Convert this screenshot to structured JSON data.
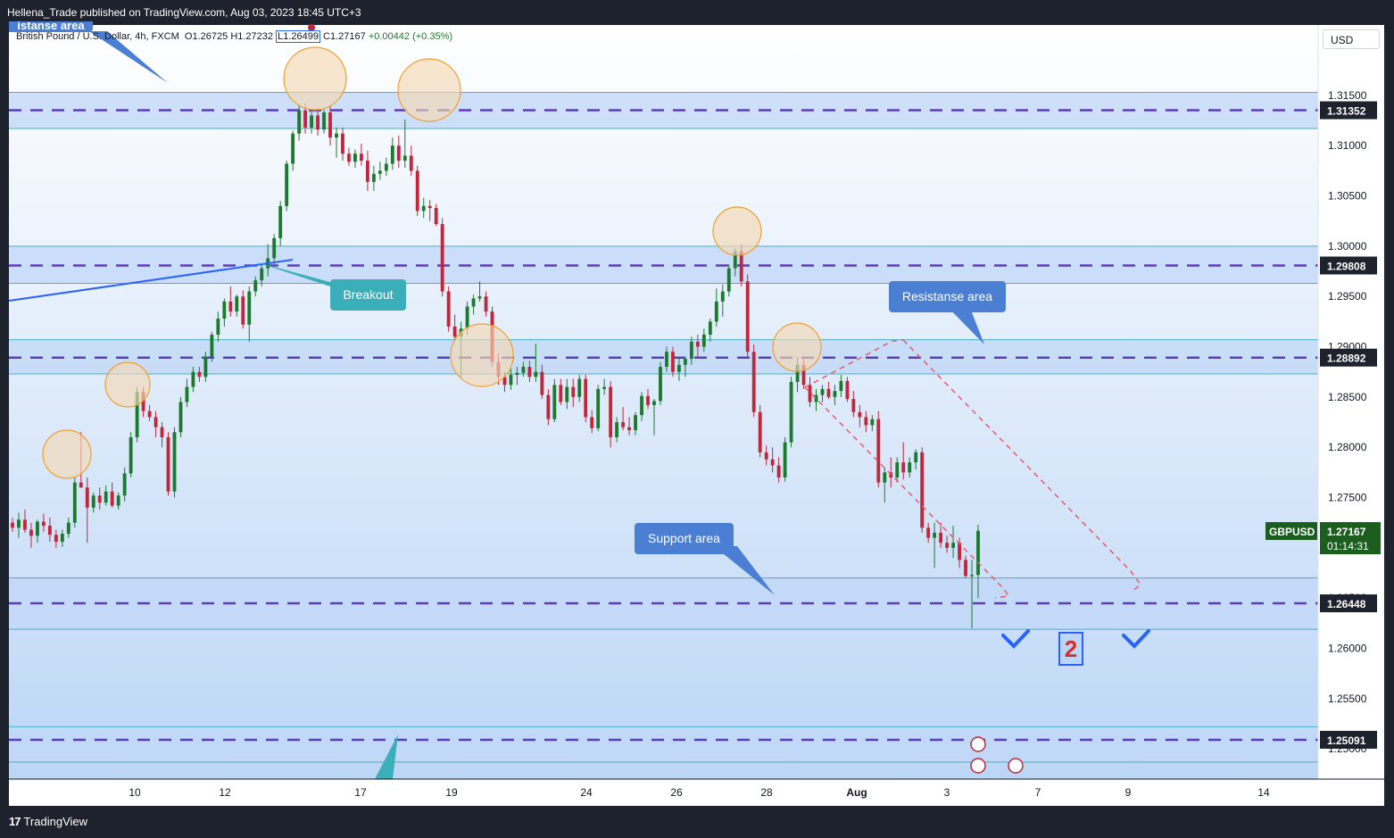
{
  "header": {
    "publisher_line": "Hellena_Trade published on TradingView.com, Aug 03, 2023 18:45 UTC+3"
  },
  "footer": {
    "brand": "TradingView",
    "brand_glyph": "17"
  },
  "legend": {
    "symbol_name": "British Pound / U.S. Dollar, 4h, FXCM",
    "open": "O1.26725",
    "high": "H1.27232",
    "low": "L1.26499",
    "close": "C1.27167",
    "change": "+0.00442 (+0.35%)"
  },
  "currency_label": "USD",
  "chart_data": {
    "type": "candlestick",
    "symbol": "GBPUSD",
    "interval": "4h",
    "x_ticks": [
      "10",
      "12",
      "17",
      "19",
      "24",
      "26",
      "28",
      "Aug",
      "3",
      "7",
      "9",
      "14"
    ],
    "y_ticks": [
      "1.31500",
      "1.31000",
      "1.30500",
      "1.30000",
      "1.29500",
      "1.29000",
      "1.28500",
      "1.28000",
      "1.27500",
      "1.27000",
      "1.26500",
      "1.26000",
      "1.25500",
      "1.25000"
    ],
    "ylim": [
      1.247,
      1.322
    ],
    "current_price": {
      "symbol_label": "GBPUSD",
      "price": "1.27167",
      "countdown": "01:14:31"
    },
    "levels": [
      {
        "price": 1.31352,
        "label": "1.31352",
        "zone": [
          1.3117,
          1.3153
        ]
      },
      {
        "price": 1.29808,
        "label": "1.29808",
        "zone": [
          1.2963,
          1.3
        ]
      },
      {
        "price": 1.28892,
        "label": "1.28892",
        "zone": [
          1.2873,
          1.2907
        ]
      },
      {
        "price": 1.26448,
        "label": "1.26448",
        "zone": [
          1.2619,
          1.267
        ]
      },
      {
        "price": 1.25091,
        "label": "1.25091",
        "zone": [
          1.2487,
          1.2522
        ]
      }
    ],
    "candles": [
      [
        1.2725,
        1.273,
        1.2716,
        1.272
      ],
      [
        1.272,
        1.2735,
        1.271,
        1.2728
      ],
      [
        1.2728,
        1.2738,
        1.2715,
        1.2718
      ],
      [
        1.2718,
        1.2725,
        1.27,
        1.2712
      ],
      [
        1.2712,
        1.2728,
        1.2705,
        1.2726
      ],
      [
        1.2726,
        1.2734,
        1.2716,
        1.2722
      ],
      [
        1.2722,
        1.273,
        1.2706,
        1.2713
      ],
      [
        1.2713,
        1.2718,
        1.27,
        1.2706
      ],
      [
        1.2706,
        1.2718,
        1.2701,
        1.2714
      ],
      [
        1.2714,
        1.273,
        1.271,
        1.2725
      ],
      [
        1.2725,
        1.277,
        1.272,
        1.2765
      ],
      [
        1.2765,
        1.2815,
        1.276,
        1.276
      ],
      [
        1.276,
        1.277,
        1.2705,
        1.274
      ],
      [
        1.274,
        1.2755,
        1.2735,
        1.2752
      ],
      [
        1.2752,
        1.276,
        1.2738,
        1.2745
      ],
      [
        1.2745,
        1.2762,
        1.2742,
        1.2756
      ],
      [
        1.2756,
        1.2765,
        1.274,
        1.2742
      ],
      [
        1.2742,
        1.2755,
        1.2738,
        1.2752
      ],
      [
        1.2752,
        1.278,
        1.2746,
        1.2774
      ],
      [
        1.2774,
        1.2815,
        1.277,
        1.281
      ],
      [
        1.281,
        1.286,
        1.2805,
        1.2855
      ],
      [
        1.2855,
        1.286,
        1.283,
        1.2836
      ],
      [
        1.2836,
        1.2842,
        1.2826,
        1.283
      ],
      [
        1.283,
        1.2836,
        1.281,
        1.282
      ],
      [
        1.282,
        1.2825,
        1.28,
        1.281
      ],
      [
        1.281,
        1.2815,
        1.2752,
        1.2756
      ],
      [
        1.2756,
        1.282,
        1.275,
        1.2815
      ],
      [
        1.2815,
        1.285,
        1.281,
        1.2845
      ],
      [
        1.2845,
        1.2868,
        1.284,
        1.286
      ],
      [
        1.286,
        1.288,
        1.2855,
        1.2875
      ],
      [
        1.2875,
        1.288,
        1.2865,
        1.287
      ],
      [
        1.287,
        1.2895,
        1.2865,
        1.289
      ],
      [
        1.289,
        1.2915,
        1.2885,
        1.2912
      ],
      [
        1.2912,
        1.2935,
        1.2905,
        1.2928
      ],
      [
        1.2928,
        1.2948,
        1.292,
        1.2945
      ],
      [
        1.2945,
        1.296,
        1.293,
        1.2935
      ],
      [
        1.2935,
        1.2952,
        1.293,
        1.295
      ],
      [
        1.295,
        1.2956,
        1.2918,
        1.2922
      ],
      [
        1.2922,
        1.296,
        1.2905,
        1.2955
      ],
      [
        1.2955,
        1.297,
        1.295,
        1.2966
      ],
      [
        1.2966,
        1.2982,
        1.296,
        1.2978
      ],
      [
        1.2978,
        1.3002,
        1.297,
        1.2988
      ],
      [
        1.2988,
        1.3012,
        1.298,
        1.3008
      ],
      [
        1.3008,
        1.3045,
        1.3,
        1.304
      ],
      [
        1.304,
        1.3085,
        1.3035,
        1.3082
      ],
      [
        1.3082,
        1.3115,
        1.3075,
        1.3112
      ],
      [
        1.3112,
        1.314,
        1.3105,
        1.3135
      ],
      [
        1.3135,
        1.3142,
        1.3112,
        1.3118
      ],
      [
        1.3118,
        1.3136,
        1.3112,
        1.313
      ],
      [
        1.313,
        1.3138,
        1.311,
        1.3116
      ],
      [
        1.3116,
        1.3136,
        1.3112,
        1.3133
      ],
      [
        1.3133,
        1.314,
        1.31,
        1.3108
      ],
      [
        1.3108,
        1.3118,
        1.3088,
        1.3112
      ],
      [
        1.3112,
        1.3118,
        1.3085,
        1.3092
      ],
      [
        1.3092,
        1.3098,
        1.308,
        1.3084
      ],
      [
        1.3084,
        1.3096,
        1.3078,
        1.3092
      ],
      [
        1.3092,
        1.3102,
        1.308,
        1.3085
      ],
      [
        1.3085,
        1.3095,
        1.3055,
        1.3064
      ],
      [
        1.3064,
        1.308,
        1.3055,
        1.3072
      ],
      [
        1.3072,
        1.3084,
        1.3066,
        1.3075
      ],
      [
        1.3075,
        1.3088,
        1.307,
        1.3082
      ],
      [
        1.3082,
        1.3108,
        1.3076,
        1.31
      ],
      [
        1.31,
        1.311,
        1.3078,
        1.3085
      ],
      [
        1.3085,
        1.3126,
        1.3078,
        1.309
      ],
      [
        1.309,
        1.31,
        1.307,
        1.3075
      ],
      [
        1.3075,
        1.308,
        1.303,
        1.3035
      ],
      [
        1.3035,
        1.3048,
        1.3028,
        1.304
      ],
      [
        1.304,
        1.3046,
        1.3025,
        1.3038
      ],
      [
        1.3038,
        1.3042,
        1.302,
        1.3022
      ],
      [
        1.3022,
        1.3028,
        1.295,
        1.2955
      ],
      [
        1.2955,
        1.296,
        1.2915,
        1.292
      ],
      [
        1.292,
        1.2932,
        1.2905,
        1.291
      ],
      [
        1.291,
        1.2925,
        1.2868,
        1.2918
      ],
      [
        1.2918,
        1.2945,
        1.2912,
        1.294
      ],
      [
        1.294,
        1.2952,
        1.2932,
        1.2948
      ],
      [
        1.2948,
        1.2965,
        1.2945,
        1.295
      ],
      [
        1.295,
        1.2955,
        1.293,
        1.2935
      ],
      [
        1.2935,
        1.294,
        1.288,
        1.2885
      ],
      [
        1.2885,
        1.2893,
        1.2862,
        1.287
      ],
      [
        1.287,
        1.2875,
        1.2855,
        1.2862
      ],
      [
        1.2862,
        1.2878,
        1.2857,
        1.2872
      ],
      [
        1.2872,
        1.288,
        1.2862,
        1.2874
      ],
      [
        1.2874,
        1.2885,
        1.287,
        1.288
      ],
      [
        1.288,
        1.2886,
        1.2865,
        1.287
      ],
      [
        1.287,
        1.2903,
        1.2865,
        1.2875
      ],
      [
        1.2875,
        1.2882,
        1.2848,
        1.2852
      ],
      [
        1.2852,
        1.2858,
        1.2822,
        1.2828
      ],
      [
        1.2828,
        1.2868,
        1.2825,
        1.2862
      ],
      [
        1.2862,
        1.2868,
        1.2842,
        1.2845
      ],
      [
        1.2845,
        1.2868,
        1.2838,
        1.286
      ],
      [
        1.286,
        1.2868,
        1.284,
        1.285
      ],
      [
        1.285,
        1.2872,
        1.2845,
        1.2868
      ],
      [
        1.2868,
        1.2872,
        1.2825,
        1.283
      ],
      [
        1.283,
        1.2837,
        1.2814,
        1.2819
      ],
      [
        1.2819,
        1.2862,
        1.2816,
        1.2858
      ],
      [
        1.2858,
        1.2868,
        1.2852,
        1.286
      ],
      [
        1.286,
        1.2866,
        1.28,
        1.281
      ],
      [
        1.281,
        1.283,
        1.2805,
        1.2825
      ],
      [
        1.2825,
        1.284,
        1.2817,
        1.282
      ],
      [
        1.282,
        1.283,
        1.2812,
        1.2817
      ],
      [
        1.2817,
        1.2835,
        1.2812,
        1.2832
      ],
      [
        1.2832,
        1.2855,
        1.2826,
        1.2851
      ],
      [
        1.2851,
        1.2858,
        1.2838,
        1.2842
      ],
      [
        1.2842,
        1.2848,
        1.2812,
        1.2846
      ],
      [
        1.2846,
        1.2885,
        1.2842,
        1.288
      ],
      [
        1.288,
        1.29,
        1.2875,
        1.2895
      ],
      [
        1.2895,
        1.29,
        1.287,
        1.2875
      ],
      [
        1.2875,
        1.289,
        1.2866,
        1.2882
      ],
      [
        1.2882,
        1.289,
        1.287,
        1.2888
      ],
      [
        1.2888,
        1.291,
        1.2882,
        1.2905
      ],
      [
        1.2905,
        1.2912,
        1.289,
        1.29
      ],
      [
        1.29,
        1.2918,
        1.2895,
        1.2912
      ],
      [
        1.2912,
        1.2928,
        1.2905,
        1.2925
      ],
      [
        1.2925,
        1.2958,
        1.292,
        1.2945
      ],
      [
        1.2945,
        1.2962,
        1.293,
        1.2955
      ],
      [
        1.2955,
        1.2982,
        1.295,
        1.2978
      ],
      [
        1.2978,
        1.2998,
        1.297,
        1.2995
      ],
      [
        1.2995,
        1.3002,
        1.296,
        1.2965
      ],
      [
        1.2965,
        1.2972,
        1.289,
        1.2895
      ],
      [
        1.2895,
        1.2902,
        1.283,
        1.2835
      ],
      [
        1.2835,
        1.2842,
        1.279,
        1.2795
      ],
      [
        1.2795,
        1.2802,
        1.2782,
        1.2788
      ],
      [
        1.2788,
        1.28,
        1.2775,
        1.2782
      ],
      [
        1.2782,
        1.279,
        1.2765,
        1.277
      ],
      [
        1.277,
        1.281,
        1.2766,
        1.2805
      ],
      [
        1.2805,
        1.287,
        1.28,
        1.2865
      ],
      [
        1.2865,
        1.289,
        1.2855,
        1.2882
      ],
      [
        1.2882,
        1.2888,
        1.2858,
        1.2862
      ],
      [
        1.2862,
        1.287,
        1.284,
        1.2845
      ],
      [
        1.2845,
        1.2858,
        1.2836,
        1.2852
      ],
      [
        1.2852,
        1.2862,
        1.2845,
        1.2858
      ],
      [
        1.2858,
        1.2865,
        1.2848,
        1.285
      ],
      [
        1.285,
        1.2862,
        1.2842,
        1.2856
      ],
      [
        1.2856,
        1.2872,
        1.285,
        1.2866
      ],
      [
        1.2866,
        1.287,
        1.2845,
        1.2848
      ],
      [
        1.2848,
        1.2856,
        1.283,
        1.2835
      ],
      [
        1.2835,
        1.2842,
        1.282,
        1.283
      ],
      [
        1.283,
        1.2836,
        1.2815,
        1.2822
      ],
      [
        1.2822,
        1.2832,
        1.2816,
        1.2828
      ],
      [
        1.2828,
        1.2836,
        1.276,
        1.2765
      ],
      [
        1.2765,
        1.278,
        1.2745,
        1.2775
      ],
      [
        1.2775,
        1.279,
        1.276,
        1.277
      ],
      [
        1.277,
        1.279,
        1.2765,
        1.2785
      ],
      [
        1.2785,
        1.2805,
        1.2768,
        1.2775
      ],
      [
        1.2775,
        1.279,
        1.277,
        1.2785
      ],
      [
        1.2785,
        1.2798,
        1.2778,
        1.2795
      ],
      [
        1.2795,
        1.28,
        1.2715,
        1.272
      ],
      [
        1.272,
        1.2725,
        1.2705,
        1.271
      ],
      [
        1.271,
        1.2725,
        1.268,
        1.2715
      ],
      [
        1.2715,
        1.2725,
        1.27,
        1.2705
      ],
      [
        1.2705,
        1.2712,
        1.2695,
        1.27
      ],
      [
        1.27,
        1.2722,
        1.269,
        1.2705
      ],
      [
        1.2705,
        1.271,
        1.268,
        1.2688
      ],
      [
        1.2688,
        1.2692,
        1.267,
        1.2672
      ],
      [
        1.2672,
        1.2688,
        1.262,
        1.2673
      ],
      [
        1.2673,
        1.2723,
        1.265,
        1.2717
      ]
    ]
  },
  "annotations": {
    "breakout_label": "Breakout",
    "resistance_label": "Resistanse area",
    "support_label": "Support area",
    "top_left_label": "istanse area",
    "scenario_number": "2"
  },
  "colors": {
    "bull": "#1b7a2e",
    "bear": "#c2263a",
    "zone_fill": "#c2d8f7",
    "level_line": "#5b3fb8",
    "level_tag": "#1e222d",
    "annotation_blue": "#4a7fd4",
    "breakout_teal": "#3aafb9",
    "circle_fill": "#f5d9b3",
    "circle_stroke": "#f0a030",
    "projection": "#e85a6e",
    "current_price_tag": "#1b5e20"
  }
}
